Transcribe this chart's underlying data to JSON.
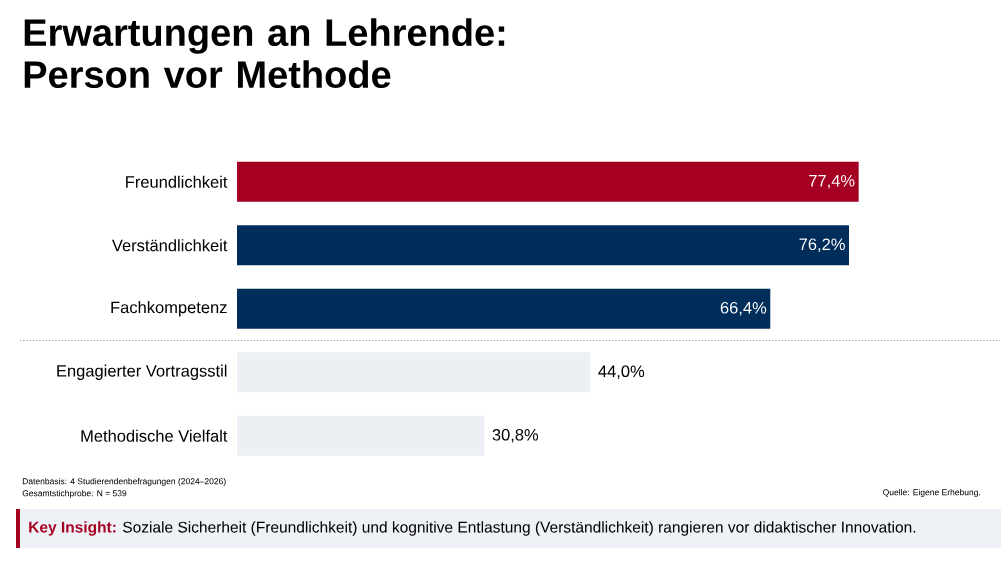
{
  "chart_data": {
    "type": "bar",
    "orientation": "horizontal",
    "title": "Erwartungen an Lehrende: Person vor Methode",
    "categories": [
      "Freundlichkeit",
      "Verständlichkeit",
      "Fachkompetenz",
      "Engagierter Vortragsstil",
      "Methodische Vielfalt"
    ],
    "values": [
      77.4,
      76.2,
      66.4,
      44.0,
      30.8
    ],
    "value_labels": [
      "77,4%",
      "76,2%",
      "66,4%",
      "44,0%",
      "30,8%"
    ],
    "colors": [
      "#a50021",
      "#002d5a",
      "#002d5a",
      "#eceff3",
      "#eceff3"
    ],
    "xlim": [
      0,
      95
    ],
    "annotations": [
      "Datenbasis: 4 Studierendenbefragungen (2024–2026)",
      "Gesamtstichprobe: N = 539",
      "Quelle: Eigene Erhebung.",
      "Key Insight:",
      "Soziale Sicherheit (Freundlichkeit) und kognitive Entlastung (Verständlichkeit) rangieren vor didaktischer Innovation."
    ]
  }
}
